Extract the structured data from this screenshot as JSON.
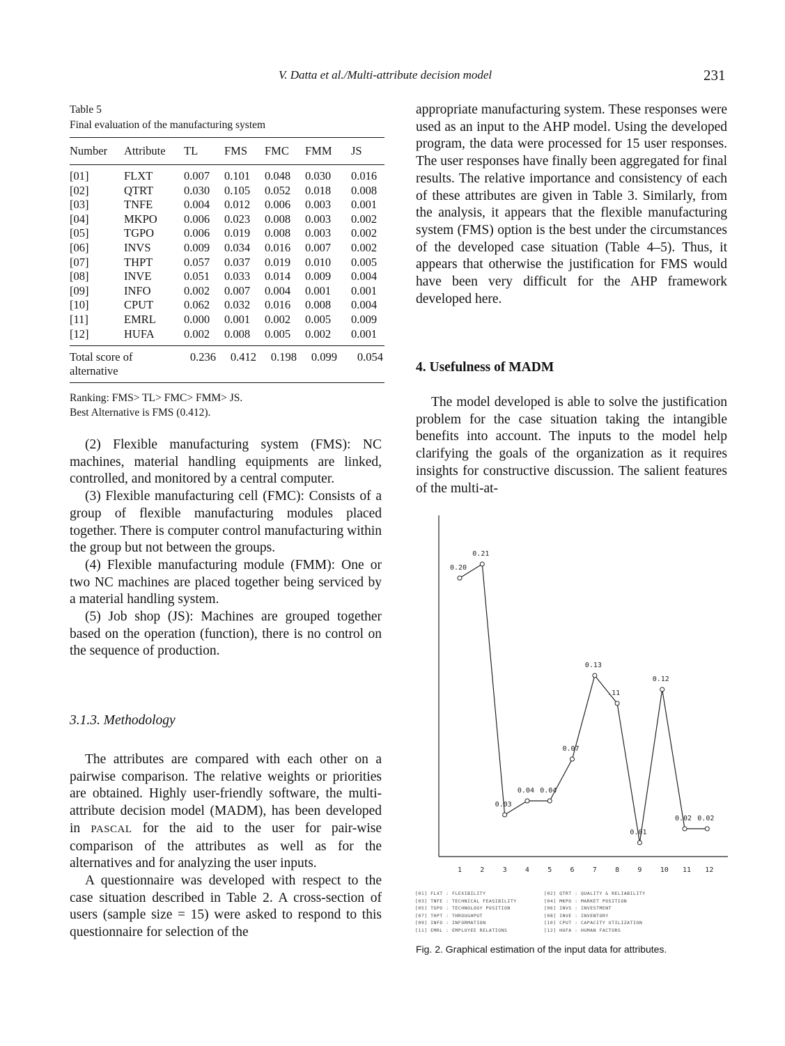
{
  "header": {
    "title": "V. Datta et al./Multi-attribute decision model",
    "page_number": "231"
  },
  "table5": {
    "caption_line1": "Table 5",
    "caption_line2": "Final evaluation of the manufacturing system",
    "columns": [
      "Number",
      "Attribute",
      "TL",
      "FMS",
      "FMC",
      "FMM",
      "JS"
    ],
    "rows": [
      [
        "[01]",
        "FLXT",
        "0.007",
        "0.101",
        "0.048",
        "0.030",
        "0.016"
      ],
      [
        "[02]",
        "QTRT",
        "0.030",
        "0.105",
        "0.052",
        "0.018",
        "0.008"
      ],
      [
        "[03]",
        "TNFE",
        "0.004",
        "0.012",
        "0.006",
        "0.003",
        "0.001"
      ],
      [
        "[04]",
        "MKPO",
        "0.006",
        "0.023",
        "0.008",
        "0.003",
        "0.002"
      ],
      [
        "[05]",
        "TGPO",
        "0.006",
        "0.019",
        "0.008",
        "0.003",
        "0.002"
      ],
      [
        "[06]",
        "INVS",
        "0.009",
        "0.034",
        "0.016",
        "0.007",
        "0.002"
      ],
      [
        "[07]",
        "THPT",
        "0.057",
        "0.037",
        "0.019",
        "0.010",
        "0.005"
      ],
      [
        "[08]",
        "INVE",
        "0.051",
        "0.033",
        "0.014",
        "0.009",
        "0.004"
      ],
      [
        "[09]",
        "INFO",
        "0.002",
        "0.007",
        "0.004",
        "0.001",
        "0.001"
      ],
      [
        "[10]",
        "CPUT",
        "0.062",
        "0.032",
        "0.016",
        "0.008",
        "0.004"
      ],
      [
        "[11]",
        "EMRL",
        "0.000",
        "0.001",
        "0.002",
        "0.005",
        "0.009"
      ],
      [
        "[12]",
        "HUFA",
        "0.002",
        "0.008",
        "0.005",
        "0.002",
        "0.001"
      ]
    ],
    "total_label_line1": "Total score of",
    "total_label_line2": "alternative",
    "totals": [
      "0.236",
      "0.412",
      "0.198",
      "0.099",
      "0.054"
    ],
    "note_ranking": "Ranking: FMS> TL> FMC> FMM> JS.",
    "note_best": "Best Alternative is FMS (0.412)."
  },
  "left_column": {
    "p_fms": "(2) Flexible manufacturing system (FMS): NC machines, material handling equipments are linked, controlled, and monitored by a central computer.",
    "p_fmc": "(3) Flexible manufacturing cell (FMC): Consists of a group of flexible manufacturing modules placed together. There is computer control manufacturing within the group but not between the groups.",
    "p_fmm": "(4) Flexible manufacturing module (FMM): One or two NC machines are placed together being serviced by a material handling system.",
    "p_js": "(5) Job shop (JS): Machines are grouped together based on the operation (function), there is no control on the sequence of production.",
    "subsection_title": "3.1.3. Methodology",
    "p_method_pre": "The attributes are compared with each other on a pairwise comparison. The relative weights or priorities are obtained. Highly user-friendly software, the multi-attribute decision model (MADM), has been developed in ",
    "p_method_pascal": "PASCAL",
    "p_method_post": " for the aid to the user for pair-wise comparison of the attributes as well as for the alternatives and for analyzing the user inputs.",
    "p_questionnaire": "A questionnaire was developed with respect to the case situation described in Table 2. A cross-section of users (sample size = 15) were asked to respond to this questionnaire for selection of the"
  },
  "right_column": {
    "p_continuation": "appropriate manufacturing system. These responses were used as an input to the AHP model. Using the developed program, the data were processed for 15 user responses. The user responses have finally been aggregated for final results. The relative importance and consistency of each of these attributes are given in Table 3. Similarly, from the analysis, it appears that the flexible manufacturing system (FMS) option is the best under the circumstances of the developed case situation (Table 4–5). Thus, it appears that otherwise the justification for FMS would have been very difficult for the AHP framework developed here.",
    "section_title": "4. Usefulness of MADM",
    "p_usefulness": "The model developed is able to solve the justification problem for the case situation taking the intangible benefits into account. The inputs to the model help clarifying the goals of the organization as it requires insights for constructive discussion. The salient features of the multi-at-"
  },
  "chart_data": {
    "type": "line",
    "x": [
      1,
      2,
      3,
      4,
      5,
      6,
      7,
      8,
      9,
      10,
      11,
      12
    ],
    "x_tick_labels": [
      "1",
      "2",
      "3",
      "4",
      "5",
      "6",
      "7",
      "8",
      "9",
      "10",
      "11",
      "12"
    ],
    "values": [
      0.2,
      0.21,
      0.03,
      0.04,
      0.04,
      0.07,
      0.13,
      0.11,
      0.01,
      0.12,
      0.02,
      0.02
    ],
    "point_labels": [
      "0.20",
      "0.21",
      "0.03",
      "0.04",
      "0.04",
      "0.07",
      "0.13",
      ".11",
      "0.01",
      "0.12",
      "0.02",
      "0.02"
    ],
    "ylim": [
      0,
      0.23
    ],
    "title": "",
    "xlabel": "",
    "ylabel": "",
    "grid": false,
    "line_color": "#222222",
    "legend": [
      "[01] FLXT : FLEXIBILITY",
      "[02] QTRT : QUALITY & RELIABILITY",
      "[03] TNFE : TECHNICAL FEASIBILITY",
      "[04] MKPO : MARKET POSITION",
      "[05] TGPO : TECHNOLOGY POSITION",
      "[06] INVS : INVESTMENT",
      "[07] THPT : THROUGHPUT",
      "[08] INVE : INVENTORY",
      "[09] INFO : INFORMATION",
      "[10] CPUT : CAPACITY UTILIZATION",
      "[11] EMRL : EMPLOYEE RELATIONS",
      "[12] HUFA : HUMAN FACTORS"
    ],
    "caption": "Fig. 2. Graphical estimation of the input data for attributes."
  }
}
